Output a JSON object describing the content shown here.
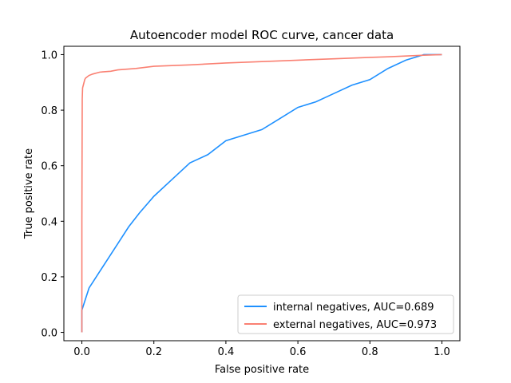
{
  "chart_data": {
    "type": "line",
    "title": "Autoencoder model ROC curve, cancer data",
    "xlabel": "False positive rate",
    "ylabel": "True positive rate",
    "xlim": [
      -0.05,
      1.05
    ],
    "ylim": [
      -0.03,
      1.03
    ],
    "xticks": [
      0.0,
      0.2,
      0.4,
      0.6,
      0.8,
      1.0
    ],
    "xtick_labels": [
      "0.0",
      "0.2",
      "0.4",
      "0.6",
      "0.8",
      "1.0"
    ],
    "yticks": [
      0.0,
      0.2,
      0.4,
      0.6,
      0.8,
      1.0
    ],
    "ytick_labels": [
      "0.0",
      "0.2",
      "0.4",
      "0.6",
      "0.8",
      "1.0"
    ],
    "grid": false,
    "legend_position": "lower-right",
    "series": [
      {
        "name": "internal negatives, AUC=0.689",
        "color": "#1e90ff",
        "x": [
          0.0,
          0.0,
          0.005,
          0.01,
          0.02,
          0.03,
          0.05,
          0.07,
          0.1,
          0.13,
          0.16,
          0.2,
          0.25,
          0.3,
          0.35,
          0.4,
          0.45,
          0.5,
          0.55,
          0.6,
          0.65,
          0.7,
          0.75,
          0.8,
          0.85,
          0.9,
          0.95,
          1.0
        ],
        "y": [
          0.0,
          0.08,
          0.1,
          0.12,
          0.16,
          0.18,
          0.22,
          0.26,
          0.32,
          0.38,
          0.43,
          0.49,
          0.55,
          0.61,
          0.64,
          0.69,
          0.71,
          0.73,
          0.77,
          0.81,
          0.83,
          0.86,
          0.89,
          0.91,
          0.95,
          0.98,
          1.0,
          1.0
        ]
      },
      {
        "name": "external negatives, AUC=0.973",
        "color": "#fa8072",
        "x": [
          0.0,
          0.0,
          0.001,
          0.002,
          0.004,
          0.006,
          0.008,
          0.01,
          0.015,
          0.02,
          0.03,
          0.05,
          0.08,
          0.1,
          0.15,
          0.2,
          0.3,
          0.4,
          0.5,
          0.6,
          0.7,
          0.8,
          0.85,
          0.9,
          0.95,
          1.0
        ],
        "y": [
          0.0,
          0.4,
          0.84,
          0.88,
          0.89,
          0.9,
          0.91,
          0.915,
          0.92,
          0.925,
          0.93,
          0.937,
          0.94,
          0.945,
          0.95,
          0.958,
          0.963,
          0.97,
          0.975,
          0.98,
          0.985,
          0.99,
          0.992,
          0.995,
          0.998,
          1.0
        ]
      }
    ]
  }
}
